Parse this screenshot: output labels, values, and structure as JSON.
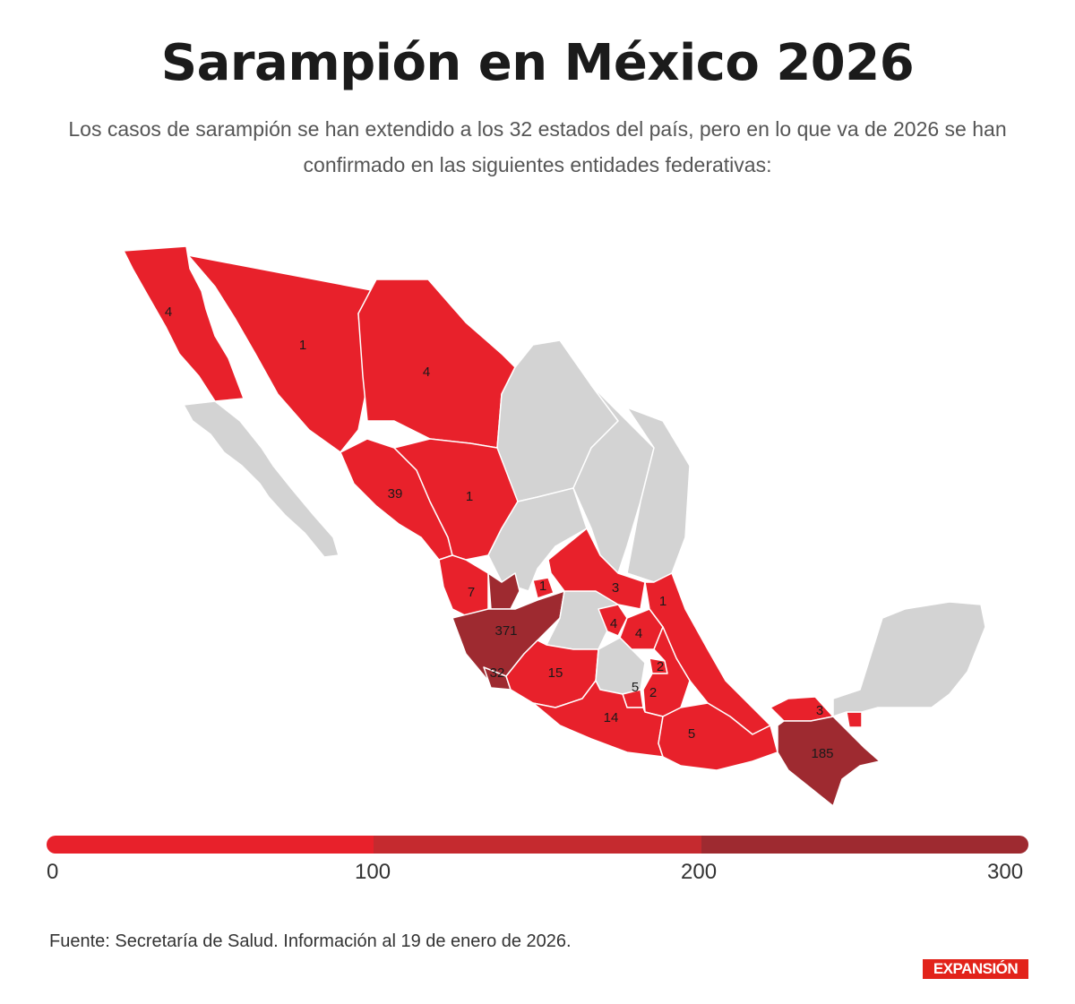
{
  "title": "Sarampión en México 2026",
  "subtitle": "Los casos de sarampión se han extendido a los 32 estados del país, pero en lo que va de 2026 se han confirmado en las siguientes entidades federativas:",
  "colors": {
    "low": "#e8212b",
    "mid": "#c52a2f",
    "high": "#9e2a30",
    "none": "#d3d3d3",
    "border": "#ffffff"
  },
  "map": {
    "labels": [
      {
        "state": "Baja California",
        "value": "4"
      },
      {
        "state": "Sonora",
        "value": "1"
      },
      {
        "state": "Chihuahua",
        "value": "4"
      },
      {
        "state": "Sinaloa",
        "value": "39"
      },
      {
        "state": "Durango",
        "value": "1"
      },
      {
        "state": "Nayarit",
        "value": "7"
      },
      {
        "state": "Zacatecas",
        "value": ""
      },
      {
        "state": "Aguascalientes",
        "value": "1"
      },
      {
        "state": "San Luis Potosí",
        "value": "3"
      },
      {
        "state": "Veracruz",
        "value": "1"
      },
      {
        "state": "Jalisco",
        "value": "371"
      },
      {
        "state": "Querétaro",
        "value": "4"
      },
      {
        "state": "Hidalgo",
        "value": "4"
      },
      {
        "state": "Colima",
        "value": "32"
      },
      {
        "state": "Michoacán",
        "value": "15"
      },
      {
        "state": "Tlaxcala",
        "value": "2"
      },
      {
        "state": "Morelos",
        "value": "5"
      },
      {
        "state": "Puebla",
        "value": "2"
      },
      {
        "state": "Guerrero",
        "value": "14"
      },
      {
        "state": "Oaxaca",
        "value": "5"
      },
      {
        "state": "Tabasco",
        "value": "3"
      },
      {
        "state": "Chiapas",
        "value": "185"
      }
    ]
  },
  "scale": {
    "ticks": [
      "0",
      "100",
      "200",
      "300"
    ]
  },
  "source": "Fuente: Secretaría de Salud. Información al 19 de enero de 2026.",
  "logo": "EXPANSIÓN"
}
